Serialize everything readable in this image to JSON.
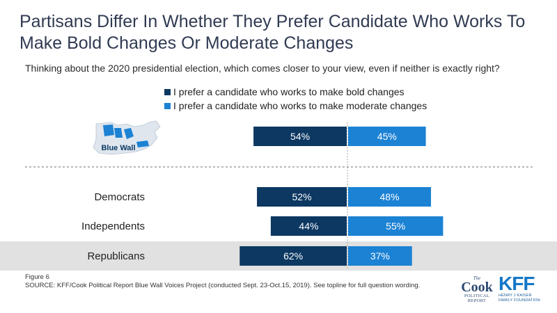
{
  "title": "Partisans Differ In Whether They Prefer Candidate Who Works To Make Bold Changes Or Moderate Changes",
  "subtitle": "Thinking about the 2020 presidential election, which comes closer to your view, even if neither is exactly right?",
  "colors": {
    "bold": "#0c3862",
    "moderate": "#1c82d4",
    "highlight_band": "#e1e1e1",
    "divider": "#8c8c8c",
    "map_fill": "#dfe6ee",
    "map_highlight": "#1c82d4"
  },
  "footer": {
    "figure": "Figure 6",
    "source": "SOURCE: KFF/Cook Political Report Blue Wall Voices Project (conducted Sept. 23-Oct.15, 2019). See topline for full question wording."
  },
  "logos": {
    "cook_the": "The",
    "cook_name": "Cook",
    "cook_sub1": "POLITICAL",
    "cook_sub2": "REPORT",
    "kff_name": "KFF",
    "kff_sub1": "HENRY J KAISER",
    "kff_sub2": "FAMILY FOUNDATION"
  },
  "map_label": "Blue Wall",
  "chart_data": {
    "type": "bar",
    "orientation": "horizontal-diverging",
    "categories": [
      "Blue Wall",
      "Democrats",
      "Independents",
      "Republicans"
    ],
    "series": [
      {
        "name": "I prefer a candidate who works to make bold changes",
        "values": [
          54,
          52,
          44,
          62
        ],
        "labels": [
          "54%",
          "52%",
          "44%",
          "62%"
        ]
      },
      {
        "name": "I prefer a candidate who works to make moderate changes",
        "values": [
          45,
          48,
          55,
          37
        ],
        "labels": [
          "45%",
          "48%",
          "55%",
          "37%"
        ]
      }
    ],
    "highlight_category": "Republicans",
    "legend_position": "top-center"
  }
}
